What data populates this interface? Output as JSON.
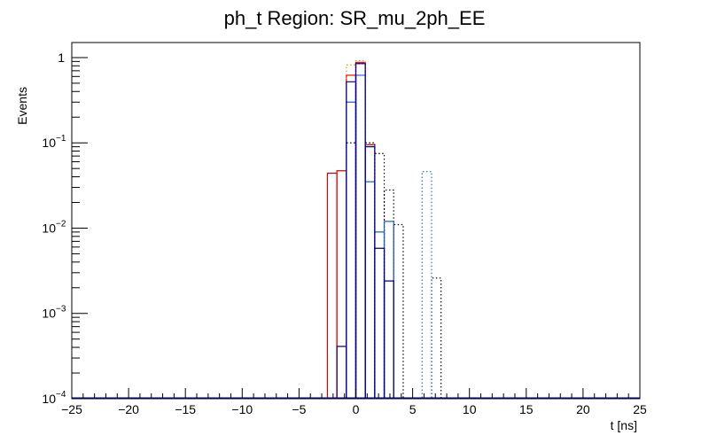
{
  "chart_data": {
    "type": "histogram",
    "title": "ph_t Region: SR_mu_2ph_EE",
    "xlabel": "t [ns]",
    "ylabel": "Events",
    "xlim": [
      -25,
      25
    ],
    "ylim": [
      0.0001,
      1.5
    ],
    "yscale": "log",
    "grid": false,
    "legend": "none",
    "x_ticks": [
      {
        "value": -25,
        "label": "−25"
      },
      {
        "value": -20,
        "label": "−20"
      },
      {
        "value": -15,
        "label": "−15"
      },
      {
        "value": -10,
        "label": "−10"
      },
      {
        "value": -5,
        "label": "−5"
      },
      {
        "value": 0,
        "label": "0"
      },
      {
        "value": 5,
        "label": "5"
      },
      {
        "value": 10,
        "label": "10"
      },
      {
        "value": 15,
        "label": "15"
      },
      {
        "value": 20,
        "label": "20"
      },
      {
        "value": 25,
        "label": "25"
      }
    ],
    "y_ticks": [
      {
        "value": 1,
        "base": "1",
        "exp": ""
      },
      {
        "value": 0.1,
        "base": "10",
        "exp": "−1"
      },
      {
        "value": 0.01,
        "base": "10",
        "exp": "−2"
      },
      {
        "value": 0.001,
        "base": "10",
        "exp": "−3"
      },
      {
        "value": 0.0001,
        "base": "10",
        "exp": "−4"
      }
    ],
    "series": [
      {
        "color": "#dd0000",
        "style": "solid",
        "bins": [
          {
            "x0": -2.5,
            "x1": -1.67,
            "y": 0.044
          },
          {
            "x0": -1.67,
            "x1": -0.83,
            "y": 0.047
          },
          {
            "x0": -0.83,
            "x1": 0.0,
            "y": 0.62
          },
          {
            "x0": 0.0,
            "x1": 0.83,
            "y": 0.88
          },
          {
            "x0": 0.83,
            "x1": 1.67,
            "y": 0.095
          }
        ]
      },
      {
        "color": "#ff7f0e",
        "style": "dotted",
        "bins": [
          {
            "x0": -0.83,
            "x1": 0.0,
            "y": 0.82
          },
          {
            "x0": 0.0,
            "x1": 0.83,
            "y": 0.92
          },
          {
            "x0": 0.83,
            "x1": 1.67,
            "y": 0.1
          }
        ]
      },
      {
        "color": "#000000",
        "style": "dotted",
        "bins": [
          {
            "x0": -0.83,
            "x1": 0.0,
            "y": 0.1
          },
          {
            "x0": 0.0,
            "x1": 0.83,
            "y": 0.85
          },
          {
            "x0": 0.83,
            "x1": 1.67,
            "y": 0.1
          },
          {
            "x0": 1.67,
            "x1": 2.5,
            "y": 0.075
          },
          {
            "x0": 2.5,
            "x1": 3.33,
            "y": 0.028
          },
          {
            "x0": 3.33,
            "x1": 4.17,
            "y": 0.011
          },
          {
            "x0": 6.67,
            "x1": 7.5,
            "y": 0.0026
          }
        ]
      },
      {
        "color": "#1f77b4",
        "style": "dotted",
        "bins": [
          {
            "x0": 5.83,
            "x1": 6.67,
            "y": 0.046
          }
        ]
      },
      {
        "color": "#1f5fd0",
        "style": "solid",
        "bins": [
          {
            "x0": -0.83,
            "x1": 0.0,
            "y": 0.3
          },
          {
            "x0": 0.0,
            "x1": 0.83,
            "y": 0.62
          },
          {
            "x0": 0.83,
            "x1": 1.67,
            "y": 0.035
          },
          {
            "x0": 1.67,
            "x1": 2.5,
            "y": 0.009
          },
          {
            "x0": 2.5,
            "x1": 3.33,
            "y": 0.012
          }
        ]
      },
      {
        "color": "#00008b",
        "style": "solid",
        "bins": [
          {
            "x0": -1.67,
            "x1": -0.83,
            "y": 0.00041
          },
          {
            "x0": -0.83,
            "x1": 0.0,
            "y": 0.52
          },
          {
            "x0": 0.0,
            "x1": 0.83,
            "y": 0.85
          },
          {
            "x0": 0.83,
            "x1": 1.67,
            "y": 0.09
          },
          {
            "x0": 1.67,
            "x1": 2.5,
            "y": 0.0058
          },
          {
            "x0": 2.5,
            "x1": 3.33,
            "y": 0.0024
          }
        ]
      }
    ]
  }
}
